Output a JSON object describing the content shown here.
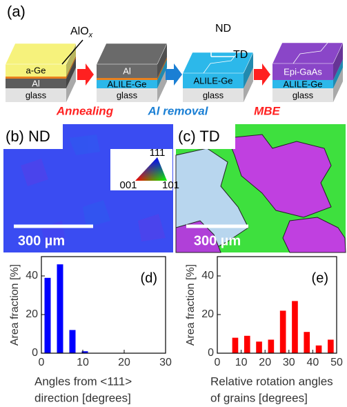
{
  "figure": {
    "panel_a": {
      "label": "(a)",
      "callout": {
        "text": "AlO",
        "subscript": "x"
      },
      "blocks": [
        {
          "layers": [
            "a-Ge",
            "Al",
            "glass"
          ]
        },
        {
          "layers": [
            "Al",
            "ALILE-Ge",
            "glass"
          ]
        },
        {
          "layers": [
            "ALILE-Ge",
            "glass"
          ]
        },
        {
          "layers": [
            "Epi-GaAs",
            "ALILE-Ge",
            "glass"
          ]
        }
      ],
      "axes": [
        "ND",
        "TD"
      ],
      "steps": [
        "Annealing",
        "Al removal",
        "MBE"
      ]
    },
    "panel_b": {
      "label": "(b) ND",
      "scale_bar": "300 µm",
      "legend": [
        "111",
        "001",
        "101"
      ]
    },
    "panel_c": {
      "label": "(c) TD",
      "scale_bar": "300 µm"
    }
  },
  "chart_data": [
    {
      "type": "bar",
      "annotation": "(d)",
      "x": [
        1.5,
        4.5,
        7.5,
        10.5
      ],
      "values": [
        39,
        46,
        12,
        1
      ],
      "color": "#0000ff",
      "xlim": [
        0,
        30
      ],
      "xticks": [
        0,
        10,
        20,
        30
      ],
      "ylim": [
        0,
        50
      ],
      "yticks": [
        0,
        20,
        40
      ],
      "ylabel": "Area fraction [%]",
      "xlabel": [
        "Angles from <111>",
        "direction [degrees]"
      ]
    },
    {
      "type": "bar",
      "annotation": "(e)",
      "x": [
        7.5,
        12.5,
        17.5,
        22.5,
        27.5,
        32.5,
        37.5,
        42.5,
        47.5
      ],
      "values": [
        8,
        9,
        6,
        7,
        22,
        27,
        11,
        4,
        7
      ],
      "color": "#ff0000",
      "xlim": [
        0,
        50
      ],
      "xticks": [
        0,
        10,
        20,
        30,
        40,
        50
      ],
      "ylim": [
        0,
        50
      ],
      "yticks": [
        0,
        20,
        40
      ],
      "ylabel": "Area fraction [%]",
      "xlabel": [
        "Relative rotation angles",
        "of grains [degrees]"
      ]
    }
  ]
}
